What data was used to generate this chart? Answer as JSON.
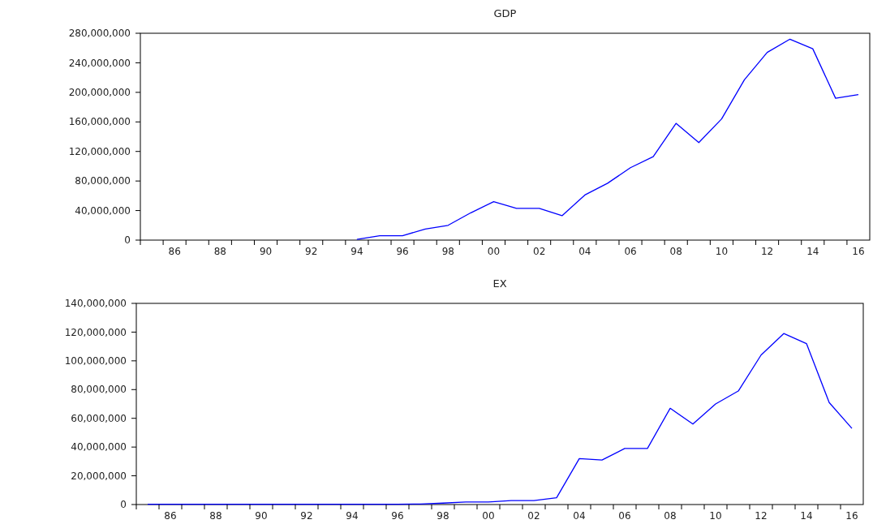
{
  "chart_data": [
    {
      "type": "line",
      "title": "GDP",
      "x": [
        1994,
        1995,
        1996,
        1997,
        1998,
        1999,
        2000,
        2001,
        2002,
        2003,
        2004,
        2005,
        2006,
        2007,
        2008,
        2009,
        2010,
        2011,
        2012,
        2013,
        2014,
        2015,
        2016
      ],
      "series": [
        {
          "color": "#0000ff",
          "values": [
            1000000,
            6000000,
            6000000,
            15000000,
            20000000,
            37000000,
            52000000,
            43000000,
            43000000,
            33000000,
            61000000,
            77000000,
            98000000,
            113000000,
            158000000,
            132000000,
            164000000,
            217000000,
            254000000,
            272000000,
            259000000,
            192000000,
            197000000
          ]
        }
      ],
      "xlim": [
        1984.5,
        2016.5
      ],
      "xticks": [
        {
          "value": 1986,
          "label": "86"
        },
        {
          "value": 1988,
          "label": "88"
        },
        {
          "value": 1990,
          "label": "90"
        },
        {
          "value": 1992,
          "label": "92"
        },
        {
          "value": 1994,
          "label": "94"
        },
        {
          "value": 1996,
          "label": "96"
        },
        {
          "value": 1998,
          "label": "98"
        },
        {
          "value": 2000,
          "label": "00"
        },
        {
          "value": 2002,
          "label": "02"
        },
        {
          "value": 2004,
          "label": "04"
        },
        {
          "value": 2006,
          "label": "06"
        },
        {
          "value": 2008,
          "label": "08"
        },
        {
          "value": 2010,
          "label": "10"
        },
        {
          "value": 2012,
          "label": "12"
        },
        {
          "value": 2014,
          "label": "14"
        },
        {
          "value": 2016,
          "label": "16"
        }
      ],
      "ylim": [
        0,
        280000000
      ],
      "yticks": [
        {
          "value": 0,
          "label": "0"
        },
        {
          "value": 40000000,
          "label": "40,000,000"
        },
        {
          "value": 80000000,
          "label": "80,000,000"
        },
        {
          "value": 120000000,
          "label": "120,000,000"
        },
        {
          "value": 160000000,
          "label": "160,000,000"
        },
        {
          "value": 200000000,
          "label": "200,000,000"
        },
        {
          "value": 240000000,
          "label": "240,000,000"
        },
        {
          "value": 280000000,
          "label": "280,000,000"
        }
      ],
      "grid": false
    },
    {
      "type": "line",
      "title": "EX",
      "x": [
        1985,
        1986,
        1987,
        1988,
        1989,
        1990,
        1991,
        1992,
        1993,
        1994,
        1995,
        1996,
        1997,
        1998,
        1999,
        2000,
        2001,
        2002,
        2003,
        2004,
        2005,
        2006,
        2007,
        2008,
        2009,
        2010,
        2011,
        2012,
        2013,
        2014,
        2015,
        2016
      ],
      "series": [
        {
          "color": "#0000ff",
          "values": [
            200000,
            200000,
            200000,
            200000,
            200000,
            200000,
            200000,
            200000,
            200000,
            200000,
            200000,
            200000,
            400000,
            1000000,
            1800000,
            1800000,
            2700000,
            2700000,
            4700000,
            32000000,
            31000000,
            39000000,
            39000000,
            67000000,
            56000000,
            70000000,
            79000000,
            104000000,
            119000000,
            112000000,
            71000000,
            53000000
          ]
        }
      ],
      "xlim": [
        1984.5,
        2016.5
      ],
      "xticks": [
        {
          "value": 1986,
          "label": "86"
        },
        {
          "value": 1988,
          "label": "88"
        },
        {
          "value": 1990,
          "label": "90"
        },
        {
          "value": 1992,
          "label": "92"
        },
        {
          "value": 1994,
          "label": "94"
        },
        {
          "value": 1996,
          "label": "96"
        },
        {
          "value": 1998,
          "label": "98"
        },
        {
          "value": 2000,
          "label": "00"
        },
        {
          "value": 2002,
          "label": "02"
        },
        {
          "value": 2004,
          "label": "04"
        },
        {
          "value": 2006,
          "label": "06"
        },
        {
          "value": 2008,
          "label": "08"
        },
        {
          "value": 2010,
          "label": "10"
        },
        {
          "value": 2012,
          "label": "12"
        },
        {
          "value": 2014,
          "label": "14"
        },
        {
          "value": 2016,
          "label": "16"
        }
      ],
      "ylim": [
        0,
        140000000
      ],
      "yticks": [
        {
          "value": 0,
          "label": "0"
        },
        {
          "value": 20000000,
          "label": "20,000,000"
        },
        {
          "value": 40000000,
          "label": "40,000,000"
        },
        {
          "value": 60000000,
          "label": "60,000,000"
        },
        {
          "value": 80000000,
          "label": "80,000,000"
        },
        {
          "value": 100000000,
          "label": "100,000,000"
        },
        {
          "value": 120000000,
          "label": "120,000,000"
        },
        {
          "value": 140000000,
          "label": "140,000,000"
        }
      ],
      "grid": false
    }
  ]
}
